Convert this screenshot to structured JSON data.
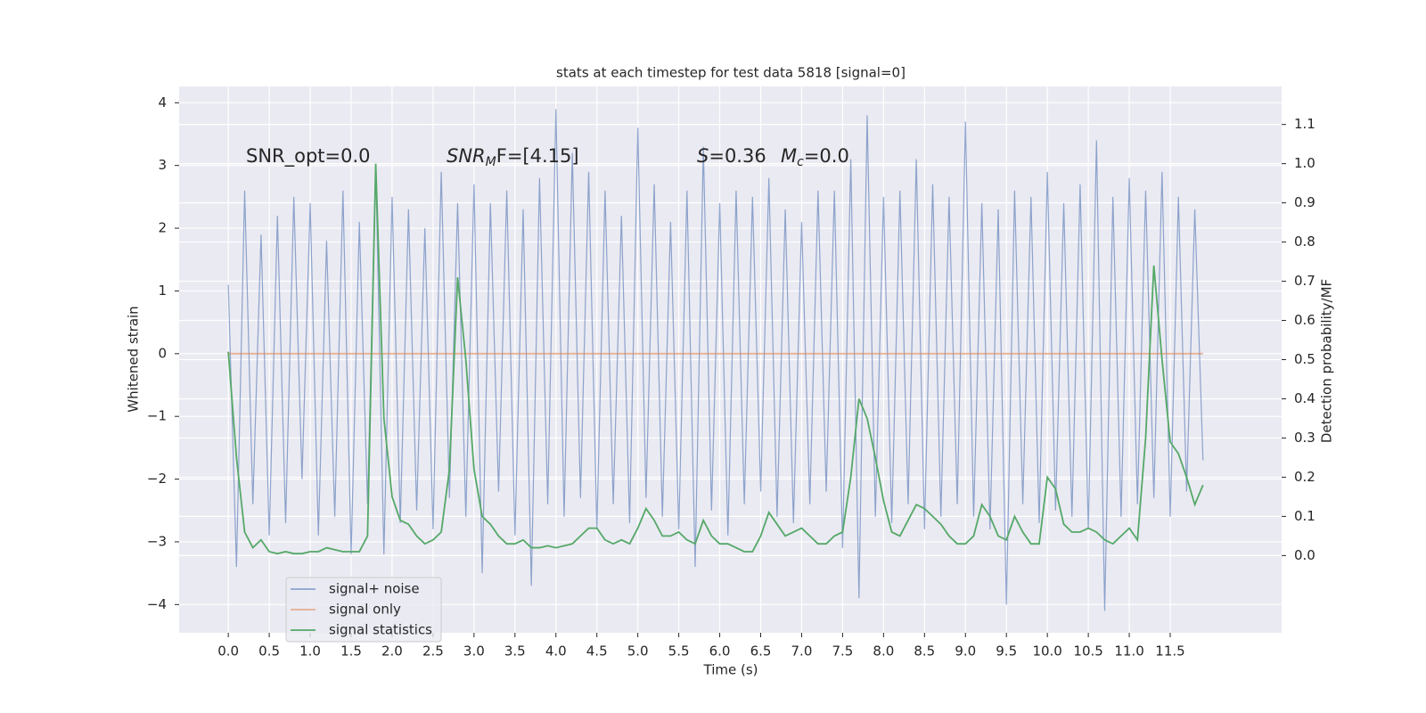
{
  "chart_data": {
    "type": "line",
    "title": "stats at each timestep for test data 5818 [signal=0]",
    "xlabel": "Time (s)",
    "ylabel": "Whitened strain",
    "y2label": "Detection probability/MF",
    "annotations": [
      {
        "main": "SNR_opt=0.0"
      },
      {
        "main": "SNR",
        "sub": "M",
        "rest": "F=[4.15]"
      },
      {
        "main": "S",
        "rest": "=0.36"
      },
      {
        "main": "M",
        "sub": "c",
        "rest": "=0.0"
      }
    ],
    "x": [
      0.0,
      0.1,
      0.2,
      0.3,
      0.4,
      0.5,
      0.6,
      0.7,
      0.8,
      0.9,
      1.0,
      1.1,
      1.2,
      1.3,
      1.4,
      1.5,
      1.6,
      1.7,
      1.8,
      1.9,
      2.0,
      2.1,
      2.2,
      2.3,
      2.4,
      2.5,
      2.6,
      2.7,
      2.8,
      2.9,
      3.0,
      3.1,
      3.2,
      3.3,
      3.4,
      3.5,
      3.6,
      3.7,
      3.8,
      3.9,
      4.0,
      4.1,
      4.2,
      4.3,
      4.4,
      4.5,
      4.6,
      4.7,
      4.8,
      4.9,
      5.0,
      5.1,
      5.2,
      5.3,
      5.4,
      5.5,
      5.6,
      5.7,
      5.8,
      5.9,
      6.0,
      6.1,
      6.2,
      6.3,
      6.4,
      6.5,
      6.6,
      6.7,
      6.8,
      6.9,
      7.0,
      7.1,
      7.2,
      7.3,
      7.4,
      7.5,
      7.6,
      7.7,
      7.8,
      7.9,
      8.0,
      8.1,
      8.2,
      8.3,
      8.4,
      8.5,
      8.6,
      8.7,
      8.8,
      8.9,
      9.0,
      9.1,
      9.2,
      9.3,
      9.4,
      9.5,
      9.6,
      9.7,
      9.8,
      9.9,
      10.0,
      10.1,
      10.2,
      10.3,
      10.4,
      10.5,
      10.6,
      10.7,
      10.8,
      10.9,
      11.0,
      11.1,
      11.2,
      11.3,
      11.4,
      11.5,
      11.6,
      11.7,
      11.8,
      11.9
    ],
    "series": [
      {
        "name": "signal+ noise",
        "color": "#4c72b0",
        "axis": "y",
        "values": [
          1.1,
          -3.4,
          2.6,
          -2.4,
          1.9,
          -2.9,
          2.2,
          -2.7,
          2.5,
          -2.0,
          2.4,
          -2.9,
          1.8,
          -2.6,
          2.6,
          -3.2,
          2.1,
          -2.4,
          3.0,
          -3.2,
          2.5,
          -2.7,
          2.3,
          -2.5,
          2.0,
          -2.8,
          2.9,
          -2.3,
          2.4,
          -2.6,
          2.7,
          -3.5,
          2.4,
          -2.2,
          2.6,
          -2.9,
          2.3,
          -3.7,
          2.8,
          -2.4,
          3.9,
          -2.6,
          3.2,
          -2.3,
          2.9,
          -2.8,
          2.6,
          -2.4,
          2.2,
          -2.7,
          3.6,
          -2.3,
          2.7,
          -2.6,
          2.1,
          -2.8,
          2.6,
          -3.4,
          3.3,
          -2.5,
          2.4,
          -2.9,
          2.6,
          -2.4,
          2.5,
          -2.2,
          2.8,
          -2.6,
          2.3,
          -2.7,
          2.1,
          -2.4,
          2.6,
          -2.2,
          2.6,
          -3.1,
          3.1,
          -3.9,
          3.8,
          -2.6,
          2.5,
          -2.7,
          2.6,
          -2.4,
          3.1,
          -2.8,
          2.7,
          -2.6,
          2.5,
          -2.4,
          3.7,
          -2.6,
          2.4,
          -2.8,
          2.3,
          -4.0,
          2.6,
          -2.4,
          2.5,
          -2.7,
          2.9,
          -2.5,
          2.4,
          -2.6,
          2.7,
          -2.8,
          3.4,
          -4.1,
          2.5,
          -2.6,
          2.8,
          -2.4,
          2.6,
          -2.3,
          2.9,
          -2.6,
          2.5,
          -2.2,
          2.3,
          -1.7
        ]
      },
      {
        "name": "signal only",
        "color": "#dd8452",
        "axis": "y",
        "values": [
          0,
          0,
          0,
          0,
          0,
          0,
          0,
          0,
          0,
          0,
          0,
          0,
          0,
          0,
          0,
          0,
          0,
          0,
          0,
          0,
          0,
          0,
          0,
          0,
          0,
          0,
          0,
          0,
          0,
          0,
          0,
          0,
          0,
          0,
          0,
          0,
          0,
          0,
          0,
          0,
          0,
          0,
          0,
          0,
          0,
          0,
          0,
          0,
          0,
          0,
          0,
          0,
          0,
          0,
          0,
          0,
          0,
          0,
          0,
          0,
          0,
          0,
          0,
          0,
          0,
          0,
          0,
          0,
          0,
          0,
          0,
          0,
          0,
          0,
          0,
          0,
          0,
          0,
          0,
          0,
          0,
          0,
          0,
          0,
          0,
          0,
          0,
          0,
          0,
          0,
          0,
          0,
          0,
          0,
          0,
          0,
          0,
          0,
          0,
          0,
          0,
          0,
          0,
          0,
          0,
          0,
          0,
          0,
          0,
          0,
          0,
          0,
          0,
          0,
          0,
          0,
          0,
          0,
          0,
          0
        ]
      },
      {
        "name": "signal statistics",
        "color": "#55a868",
        "axis": "y2",
        "values": [
          0.52,
          0.25,
          0.06,
          0.02,
          0.04,
          0.01,
          0.005,
          0.01,
          0.005,
          0.005,
          0.01,
          0.01,
          0.02,
          0.015,
          0.01,
          0.01,
          0.01,
          0.05,
          1.0,
          0.35,
          0.15,
          0.09,
          0.08,
          0.05,
          0.03,
          0.04,
          0.06,
          0.22,
          0.71,
          0.5,
          0.22,
          0.1,
          0.08,
          0.05,
          0.03,
          0.03,
          0.04,
          0.02,
          0.02,
          0.025,
          0.02,
          0.025,
          0.03,
          0.05,
          0.07,
          0.07,
          0.04,
          0.03,
          0.04,
          0.03,
          0.07,
          0.12,
          0.09,
          0.05,
          0.05,
          0.06,
          0.04,
          0.03,
          0.09,
          0.05,
          0.03,
          0.03,
          0.02,
          0.01,
          0.01,
          0.05,
          0.11,
          0.08,
          0.05,
          0.06,
          0.07,
          0.05,
          0.03,
          0.03,
          0.05,
          0.06,
          0.2,
          0.4,
          0.35,
          0.25,
          0.14,
          0.06,
          0.05,
          0.09,
          0.13,
          0.12,
          0.1,
          0.08,
          0.05,
          0.03,
          0.03,
          0.05,
          0.13,
          0.1,
          0.05,
          0.04,
          0.1,
          0.06,
          0.03,
          0.03,
          0.2,
          0.17,
          0.08,
          0.06,
          0.06,
          0.07,
          0.06,
          0.04,
          0.03,
          0.05,
          0.07,
          0.04,
          0.3,
          0.74,
          0.5,
          0.29,
          0.26,
          0.2,
          0.13,
          0.18
        ]
      }
    ],
    "xlim": [
      -0.6,
      12.86
    ],
    "xticks": [
      {
        "value": 0,
        "label": "0.0"
      },
      0.5,
      {
        "value": 1,
        "label": "1.0"
      },
      1.5,
      {
        "value": 2,
        "label": "2.0"
      },
      2.5,
      {
        "value": 3,
        "label": "3.0"
      },
      3.5,
      {
        "value": 4,
        "label": "4.0"
      },
      4.5,
      {
        "value": 5,
        "label": "5.0"
      },
      5.5,
      {
        "value": 6,
        "label": "6.0"
      },
      6.5,
      {
        "value": 7,
        "label": "7.0"
      },
      7.5,
      {
        "value": 8,
        "label": "8.0"
      },
      8.5,
      {
        "value": 9,
        "label": "9.0"
      },
      9.5,
      {
        "value": 10,
        "label": "10.0"
      },
      10.5,
      {
        "value": 11,
        "label": "11.0"
      },
      11.5
    ],
    "ylim": [
      -4.45,
      4.26
    ],
    "yticks": [
      {
        "value": -4,
        "label": "−4"
      },
      {
        "value": -3,
        "label": "−3"
      },
      {
        "value": -2,
        "label": "−2"
      },
      {
        "value": -1,
        "label": "−1"
      },
      0,
      1,
      2,
      3,
      4
    ],
    "y2lim": [
      -0.197,
      1.197
    ],
    "y2ticks": [
      {
        "value": 0,
        "label": "0.0"
      },
      0.1,
      0.2,
      0.3,
      0.4,
      0.5,
      0.6,
      0.7,
      0.8,
      0.9,
      {
        "value": 1,
        "label": "1.0"
      },
      1.1
    ],
    "grid": true,
    "legend_loc": "lower left"
  }
}
